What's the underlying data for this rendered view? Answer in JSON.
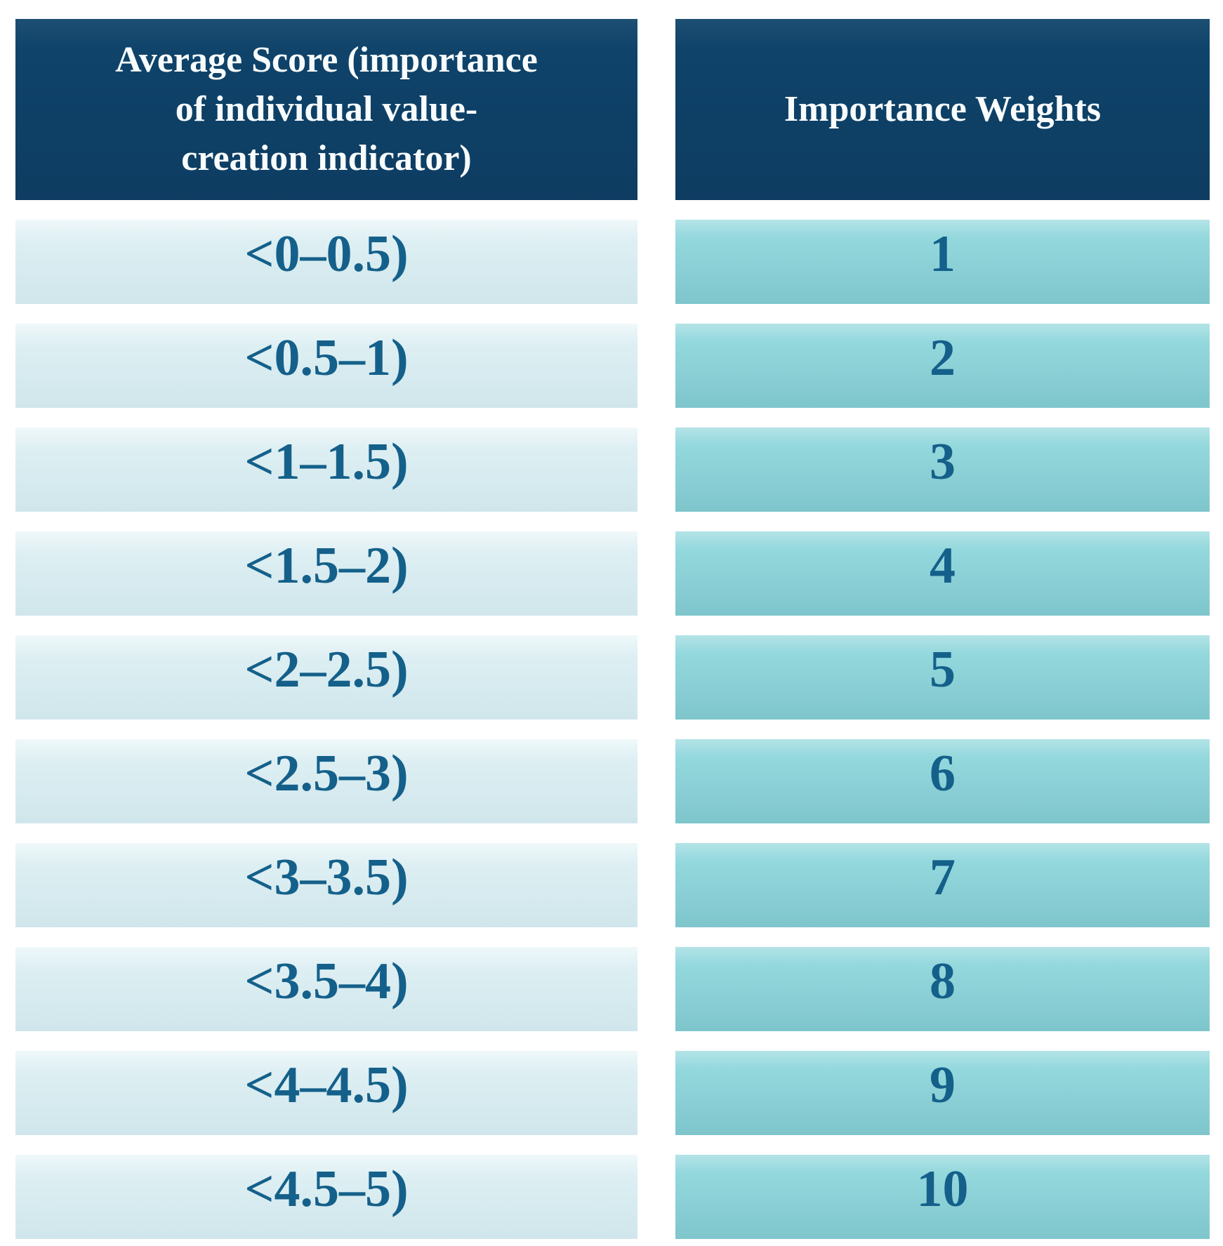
{
  "figure": {
    "type": "table",
    "columns": [
      {
        "header": "Average Score (importance\nof individual value-\ncreation indicator)"
      },
      {
        "header": "Importance Weights"
      }
    ],
    "rows": [
      {
        "score_range": "<0–0.5)",
        "weight": "1"
      },
      {
        "score_range": "<0.5–1)",
        "weight": "2"
      },
      {
        "score_range": "<1–1.5)",
        "weight": "3"
      },
      {
        "score_range": "<1.5–2)",
        "weight": "4"
      },
      {
        "score_range": "<2–2.5)",
        "weight": "5"
      },
      {
        "score_range": "<2.5–3)",
        "weight": "6"
      },
      {
        "score_range": "<3–3.5)",
        "weight": "7"
      },
      {
        "score_range": "<3.5–4)",
        "weight": "8"
      },
      {
        "score_range": "<4–4.5)",
        "weight": "9"
      },
      {
        "score_range": "<4.5–5)",
        "weight": "10"
      }
    ]
  },
  "colors": {
    "header_bg": "#0f436a",
    "header_text": "#f8fcfd",
    "score_cell_bg": "#ddeff3",
    "weight_cell_bg": "#93d8dd",
    "cell_text": "#14608a",
    "page_bg": "#ffffff"
  }
}
